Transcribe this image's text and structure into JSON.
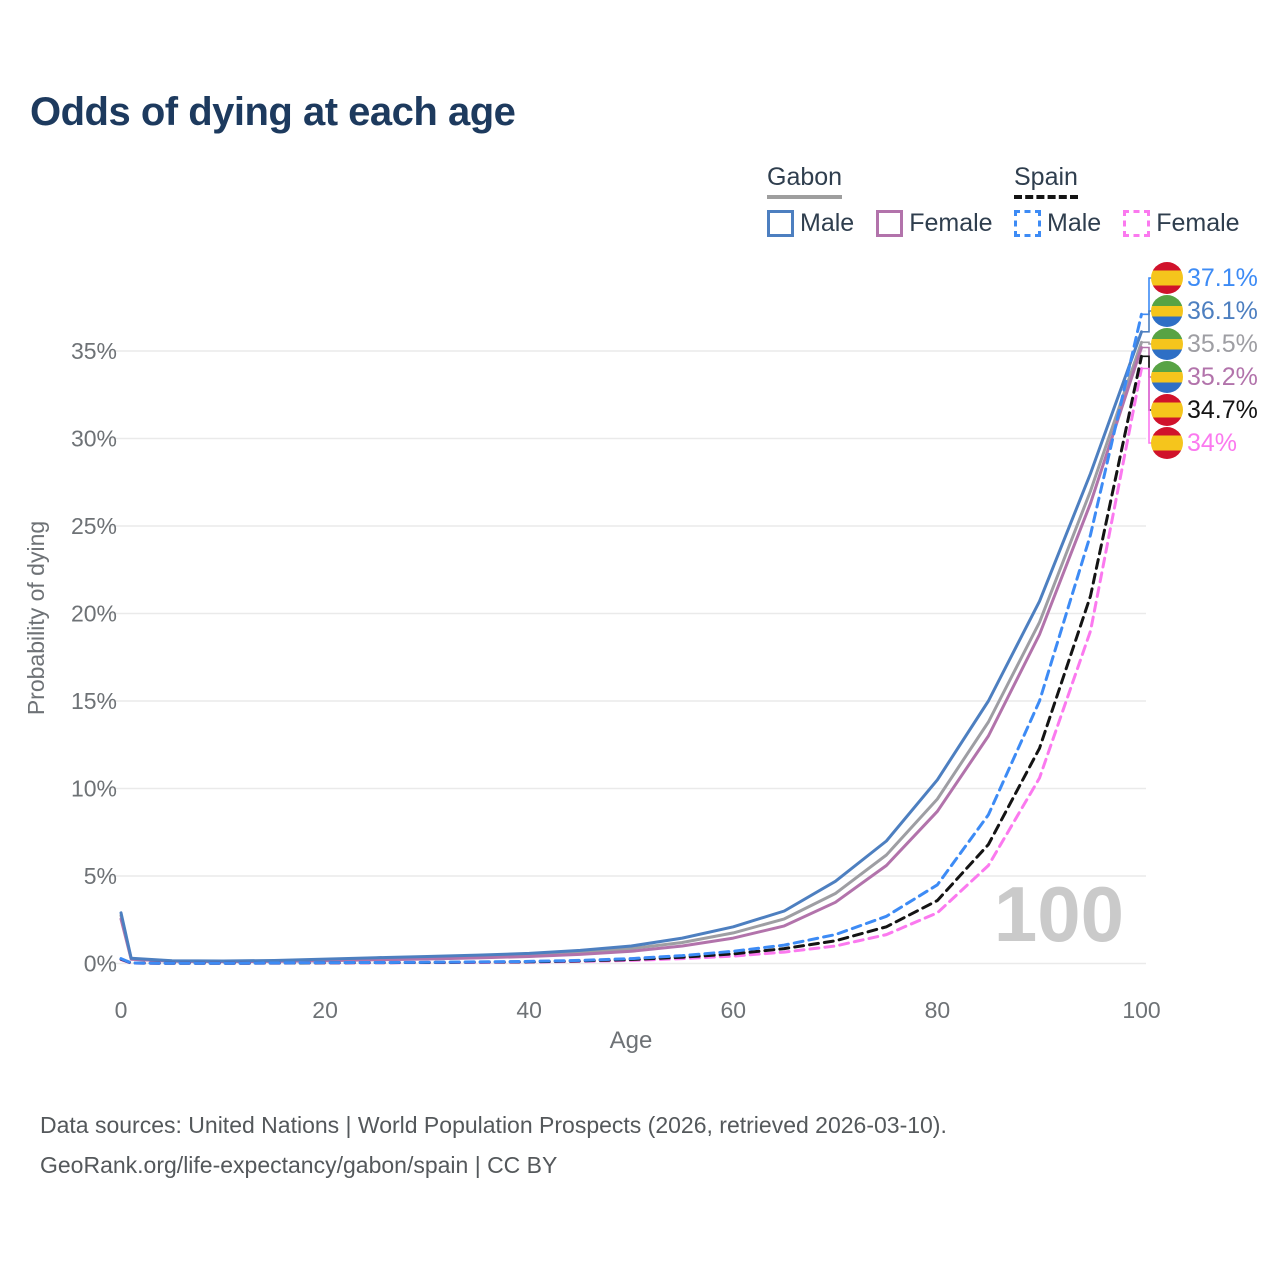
{
  "title": "Odds of dying at each age",
  "legend": {
    "groups": [
      {
        "name": "Gabon",
        "line_style": "solid",
        "underline_color": "#9e9e9e",
        "items": [
          {
            "label": "Male",
            "color": "#4d7fc0"
          },
          {
            "label": "Female",
            "color": "#b273ab"
          }
        ]
      },
      {
        "name": "Spain",
        "line_style": "dashed",
        "underline_color": "#141414",
        "items": [
          {
            "label": "Male",
            "color": "#3d8bf5"
          },
          {
            "label": "Female",
            "color": "#fb79ef"
          }
        ]
      }
    ]
  },
  "chart_data": {
    "type": "line",
    "title": "Odds of dying at each age",
    "xlabel": "Age",
    "ylabel": "Probability of dying",
    "xlim": [
      0,
      100
    ],
    "ylim": [
      0,
      38
    ],
    "x_ticks": [
      0,
      20,
      40,
      60,
      80,
      100
    ],
    "y_ticks": [
      "0%",
      "5%",
      "10%",
      "15%",
      "20%",
      "25%",
      "30%",
      "35%"
    ],
    "grid": true,
    "legend_position": "top-right",
    "watermark": "100",
    "ages": [
      0,
      1,
      5,
      10,
      15,
      20,
      25,
      30,
      35,
      40,
      45,
      50,
      55,
      60,
      65,
      70,
      75,
      80,
      85,
      90,
      95,
      100
    ],
    "series": [
      {
        "name": "Spain Male",
        "country": "Spain",
        "color": "#3d8bf5",
        "dashed": true,
        "values": [
          0.28,
          0.03,
          0.01,
          0.01,
          0.03,
          0.05,
          0.06,
          0.07,
          0.09,
          0.12,
          0.18,
          0.28,
          0.45,
          0.7,
          1.05,
          1.65,
          2.7,
          4.5,
          8.5,
          15.0,
          24.5,
          37.1
        ]
      },
      {
        "name": "Gabon Male",
        "country": "Gabon",
        "color": "#4d7fc0",
        "dashed": false,
        "values": [
          2.9,
          0.3,
          0.16,
          0.14,
          0.17,
          0.25,
          0.33,
          0.4,
          0.48,
          0.58,
          0.75,
          1.0,
          1.45,
          2.1,
          3.0,
          4.7,
          7.0,
          10.5,
          15.0,
          20.7,
          28.0,
          36.1
        ]
      },
      {
        "name": "Gabon",
        "country": "Gabon",
        "color": "#9e9ea3",
        "dashed": false,
        "values": [
          2.75,
          0.27,
          0.14,
          0.12,
          0.14,
          0.2,
          0.27,
          0.33,
          0.4,
          0.49,
          0.63,
          0.85,
          1.2,
          1.75,
          2.55,
          4.0,
          6.2,
          9.4,
          13.8,
          19.5,
          27.0,
          35.5
        ]
      },
      {
        "name": "Gabon Female",
        "country": "Gabon",
        "color": "#b273ab",
        "dashed": false,
        "values": [
          2.55,
          0.24,
          0.13,
          0.11,
          0.12,
          0.16,
          0.21,
          0.26,
          0.32,
          0.4,
          0.52,
          0.7,
          1.0,
          1.45,
          2.15,
          3.5,
          5.6,
          8.7,
          13.0,
          18.8,
          26.3,
          35.2
        ]
      },
      {
        "name": "Spain",
        "country": "Spain",
        "color": "#141414",
        "dashed": true,
        "values": [
          0.25,
          0.03,
          0.01,
          0.01,
          0.02,
          0.04,
          0.05,
          0.06,
          0.08,
          0.1,
          0.15,
          0.23,
          0.36,
          0.55,
          0.85,
          1.3,
          2.1,
          3.6,
          6.8,
          12.3,
          21.0,
          34.7
        ]
      },
      {
        "name": "Spain Female",
        "country": "Spain",
        "color": "#fb79ef",
        "dashed": true,
        "values": [
          0.22,
          0.02,
          0.01,
          0.01,
          0.02,
          0.03,
          0.04,
          0.05,
          0.06,
          0.08,
          0.12,
          0.18,
          0.28,
          0.42,
          0.65,
          1.0,
          1.65,
          2.9,
          5.6,
          10.6,
          19.0,
          34.0
        ]
      }
    ],
    "end_labels": [
      {
        "text": "37.1%",
        "flag": "spain",
        "flag_icon": "spain-flag-icon"
      },
      {
        "text": "36.1%",
        "flag": "gabon",
        "flag_icon": "gabon-flag-icon"
      },
      {
        "text": "35.5%",
        "flag": "gabon",
        "flag_icon": "gabon-flag-icon"
      },
      {
        "text": "35.2%",
        "flag": "gabon",
        "flag_icon": "gabon-flag-icon"
      },
      {
        "text": "34.7%",
        "flag": "spain",
        "flag_icon": "spain-flag-icon"
      },
      {
        "text": "34%",
        "flag": "spain",
        "flag_icon": "spain-flag-icon"
      }
    ]
  },
  "footer": {
    "line1": "Data sources: United Nations | World Population Prospects (2026, retrieved 2026-03-10).",
    "line2": "GeoRank.org/life-expectancy/gabon/spain | CC BY"
  }
}
